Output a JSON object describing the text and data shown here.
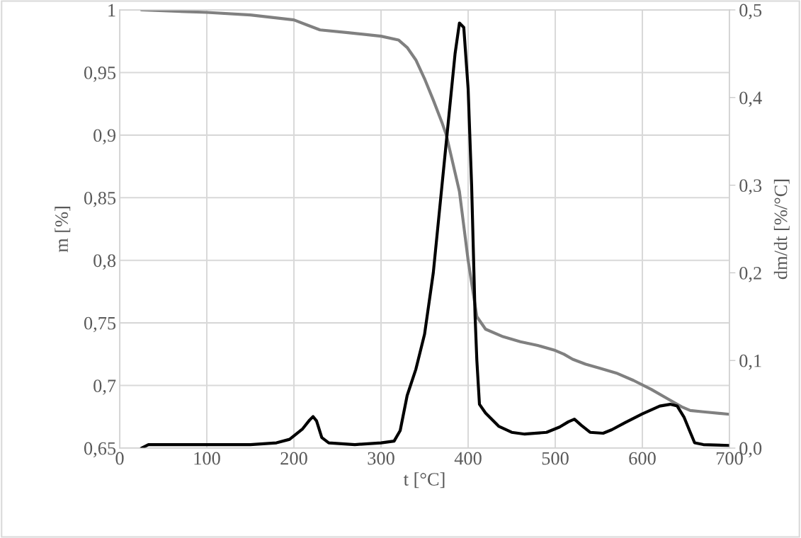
{
  "chart_data": {
    "type": "line",
    "xlabel": "t [°C]",
    "ylabel": "m [%]",
    "y2label": "dm/dt [%/°C]",
    "xlim": [
      0,
      700
    ],
    "xticks": [
      0,
      100,
      200,
      300,
      400,
      500,
      600,
      700
    ],
    "ylim": [
      0.65,
      1
    ],
    "yticks": [
      {
        "value": 0.65,
        "label": "0,65"
      },
      {
        "value": 0.7,
        "label": "0,7"
      },
      {
        "value": 0.75,
        "label": "0,75"
      },
      {
        "value": 0.8,
        "label": "0,8"
      },
      {
        "value": 0.85,
        "label": "0,85"
      },
      {
        "value": 0.9,
        "label": "0,9"
      },
      {
        "value": 0.95,
        "label": "0,95"
      },
      {
        "value": 1,
        "label": "1"
      }
    ],
    "y2lim": [
      0,
      0.5
    ],
    "y2ticks": [
      {
        "value": 0,
        "label": "0,0"
      },
      {
        "value": 0.1,
        "label": "0,1"
      },
      {
        "value": 0.2,
        "label": "0,2"
      },
      {
        "value": 0.3,
        "label": "0,3"
      },
      {
        "value": 0.4,
        "label": "0,4"
      },
      {
        "value": 0.5,
        "label": "0,5"
      }
    ],
    "grid": true,
    "legend": false,
    "marker": "none",
    "line_style": "solid",
    "series": [
      {
        "color": "#808080",
        "x": [
          25,
          100,
          150,
          200,
          215,
          230,
          260,
          300,
          320,
          330,
          340,
          350,
          360,
          370,
          375,
          385,
          390,
          400,
          410,
          420,
          440,
          460,
          480,
          500,
          510,
          520,
          535,
          550,
          570,
          590,
          610,
          630,
          645,
          655,
          670,
          700
        ],
        "values": [
          1.0,
          0.998,
          0.996,
          0.992,
          0.988,
          0.984,
          0.982,
          0.979,
          0.976,
          0.97,
          0.96,
          0.945,
          0.928,
          0.91,
          0.9,
          0.87,
          0.855,
          0.8,
          0.755,
          0.745,
          0.739,
          0.735,
          0.732,
          0.728,
          0.725,
          0.721,
          0.717,
          0.714,
          0.71,
          0.704,
          0.697,
          0.689,
          0.683,
          0.68,
          0.679,
          0.677
        ]
      },
      {
        "color": "#000000",
        "axis": "y2",
        "x": [
          25,
          33,
          60,
          100,
          150,
          180,
          195,
          210,
          218,
          222,
          226,
          232,
          240,
          270,
          300,
          315,
          322,
          330,
          340,
          350,
          360,
          370,
          378,
          385,
          390,
          395,
          400,
          404,
          408,
          410,
          413,
          420,
          435,
          450,
          465,
          490,
          505,
          515,
          522,
          530,
          540,
          555,
          565,
          580,
          600,
          620,
          632,
          640,
          648,
          655,
          660,
          670,
          700
        ],
        "values": [
          0.0,
          0.004,
          0.004,
          0.004,
          0.004,
          0.006,
          0.01,
          0.022,
          0.032,
          0.036,
          0.031,
          0.012,
          0.006,
          0.004,
          0.006,
          0.008,
          0.02,
          0.06,
          0.09,
          0.13,
          0.2,
          0.3,
          0.38,
          0.45,
          0.485,
          0.48,
          0.41,
          0.3,
          0.15,
          0.1,
          0.05,
          0.04,
          0.025,
          0.018,
          0.016,
          0.018,
          0.024,
          0.03,
          0.033,
          0.026,
          0.018,
          0.017,
          0.021,
          0.029,
          0.039,
          0.048,
          0.05,
          0.048,
          0.035,
          0.018,
          0.006,
          0.004,
          0.003
        ]
      }
    ]
  }
}
